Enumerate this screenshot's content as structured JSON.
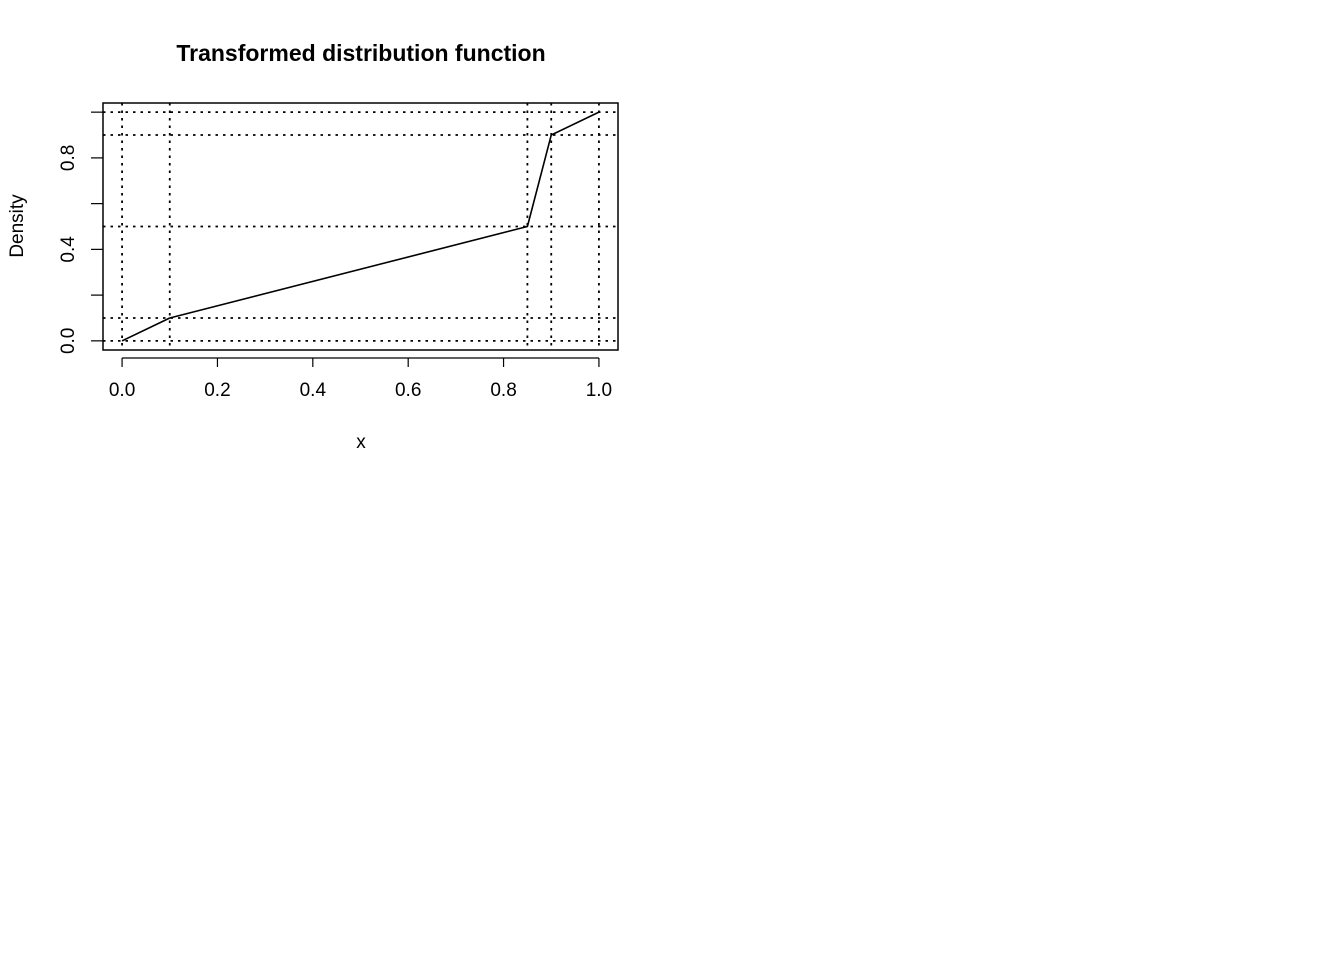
{
  "chart_data": {
    "type": "line",
    "title": "Transformed distribution function",
    "xlabel": "x",
    "ylabel": "Density",
    "xlim": [
      -0.04,
      1.04
    ],
    "ylim": [
      -0.04,
      1.04
    ],
    "x_ticks": [
      0.0,
      0.2,
      0.4,
      0.6,
      0.8,
      1.0
    ],
    "x_tick_labels": [
      "0.0",
      "0.2",
      "0.4",
      "0.6",
      "0.8",
      "1.0"
    ],
    "y_ticks": [
      0.0,
      0.2,
      0.4,
      0.6,
      0.8,
      1.0
    ],
    "y_tick_labels": [
      "0.0",
      "",
      "0.4",
      "",
      "0.8",
      ""
    ],
    "series": [
      {
        "x": [
          0.0,
          0.1,
          0.85,
          0.9,
          1.0
        ],
        "y": [
          0.0,
          0.1,
          0.5,
          0.9,
          1.0
        ],
        "color": "#000000"
      }
    ],
    "reference_lines": {
      "vertical": [
        0.0,
        0.1,
        0.85,
        0.9,
        1.0
      ],
      "horizontal": [
        0.0,
        0.1,
        0.5,
        0.9,
        1.0
      ],
      "style": "dotted"
    },
    "grid": false,
    "legend": "none"
  }
}
